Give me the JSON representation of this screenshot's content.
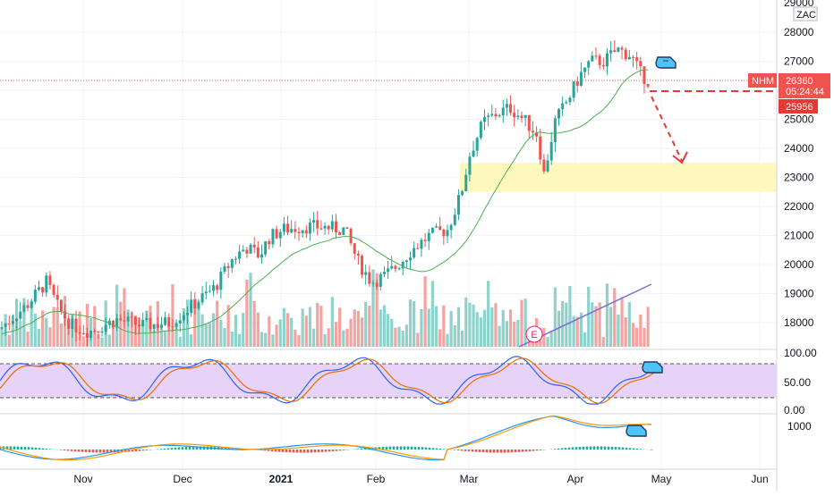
{
  "chart_data": {
    "type": "candlestick",
    "symbol": "NHM",
    "last_price": "26360",
    "countdown": "05:24:44",
    "level_label": "25956",
    "y_top_label": "29000",
    "ylim": [
      17300,
      29200
    ],
    "y_ticks": [
      "28000",
      "27000",
      "26000",
      "25000",
      "24000",
      "23000",
      "22000",
      "21000",
      "20000",
      "19000",
      "18000"
    ],
    "x_ticks": [
      "Nov",
      "Dec",
      "2021",
      "Feb",
      "Mar",
      "Apr",
      "May",
      "Jun"
    ],
    "scale_box": "ZAC",
    "rsi": {
      "ticks": [
        "100.00",
        "50.00",
        "0.00"
      ],
      "band": [
        20,
        80
      ]
    },
    "macd": {
      "ticks": [
        "1000"
      ]
    },
    "event_marker": "E",
    "support_zone": [
      22500,
      23500
    ],
    "colors": {
      "up": "#26a69a",
      "down": "#ef5350",
      "ma": "#4caf50",
      "rsi_fill": "#e1d0f5",
      "zone": "#fff9c4"
    }
  }
}
